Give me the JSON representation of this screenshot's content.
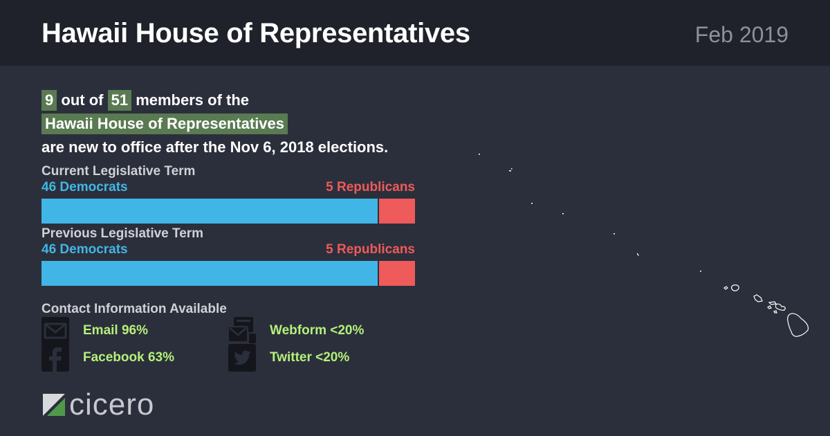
{
  "header": {
    "title": "Hawaii House of Representatives",
    "date": "Feb 2019"
  },
  "summary": {
    "new_count": "9",
    "out_of": "out of",
    "total": "51",
    "members_of_the": "members of the",
    "body_name": "Hawaii House of Representatives",
    "closing": "are new to office after the Nov 6, 2018 elections."
  },
  "colors": {
    "democrat": "#41b6e6",
    "republican": "#ef5a5a",
    "highlight": "#5a7a52",
    "contact_text": "#b5f07a"
  },
  "chart_data": [
    {
      "type": "bar",
      "orientation": "horizontal-stacked",
      "title": "Current Legislative Term",
      "series": [
        {
          "name": "Democrats",
          "value": 46,
          "label": "46 Democrats"
        },
        {
          "name": "Republicans",
          "value": 5,
          "label": "5 Republicans"
        }
      ],
      "total": 51
    },
    {
      "type": "bar",
      "orientation": "horizontal-stacked",
      "title": "Previous Legislative Term",
      "series": [
        {
          "name": "Democrats",
          "value": 46,
          "label": "46 Democrats"
        },
        {
          "name": "Republicans",
          "value": 5,
          "label": "5 Republicans"
        }
      ],
      "total": 51
    }
  ],
  "contact": {
    "title": "Contact Information Available",
    "items": [
      {
        "icon": "email-icon",
        "label": "Email 96%"
      },
      {
        "icon": "webform-icon",
        "label": "Webform <20%"
      },
      {
        "icon": "facebook-icon",
        "label": "Facebook 63%"
      },
      {
        "icon": "twitter-icon",
        "label": "Twitter <20%"
      }
    ]
  },
  "logo": {
    "word": "cicero"
  }
}
